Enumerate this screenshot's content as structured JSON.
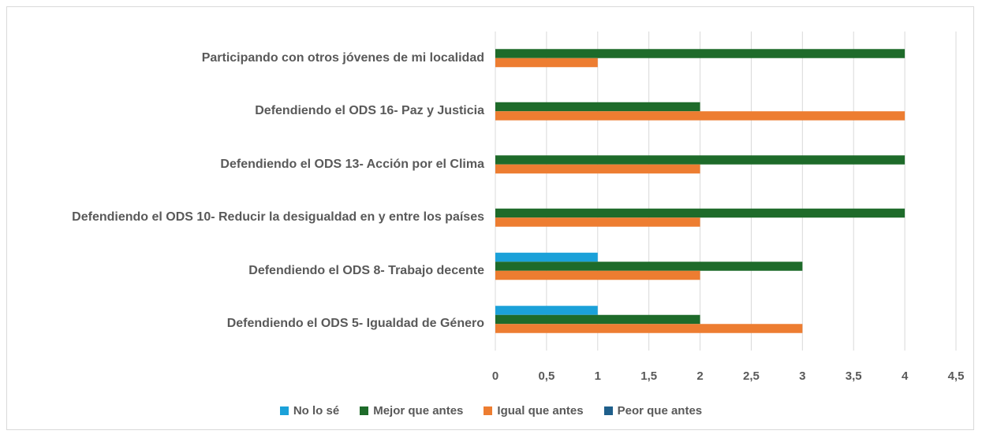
{
  "chart_data": {
    "type": "bar",
    "orientation": "horizontal",
    "categories": [
      "Participando con otros jóvenes de mi localidad",
      "Defendiendo el ODS 16- Paz y Justicia",
      "Defendiendo el ODS 13- Acción por el Clima",
      "Defendiendo el ODS 10- Reducir la desigualdad en y entre los países",
      "Defendiendo el ODS 8- Trabajo decente",
      "Defendiendo el ODS 5- Igualdad de  Género"
    ],
    "series": [
      {
        "name": "No lo sé",
        "color": "#1ba1d9",
        "values": [
          0,
          0,
          0,
          0,
          1,
          1
        ]
      },
      {
        "name": "Mejor que antes",
        "color": "#1e6b2a",
        "values": [
          4,
          2,
          4,
          4,
          3,
          2
        ]
      },
      {
        "name": "Igual que antes",
        "color": "#ed7d31",
        "values": [
          1,
          4,
          2,
          2,
          2,
          3
        ]
      },
      {
        "name": "Peor que antes",
        "color": "#1f5f8b",
        "values": [
          0,
          0,
          0,
          0,
          0,
          0
        ]
      }
    ],
    "xlim": [
      0,
      4.5
    ],
    "xticks": [
      0,
      {
        "value": 0.5,
        "label": "0,5"
      },
      1,
      {
        "value": 1.5,
        "label": "1,5"
      },
      2,
      {
        "value": 2.5,
        "label": "2,5"
      },
      3,
      {
        "value": 3.5,
        "label": "3,5"
      },
      4,
      {
        "value": 4.5,
        "label": "4,5"
      }
    ],
    "grid": true,
    "legend": "bottom"
  }
}
